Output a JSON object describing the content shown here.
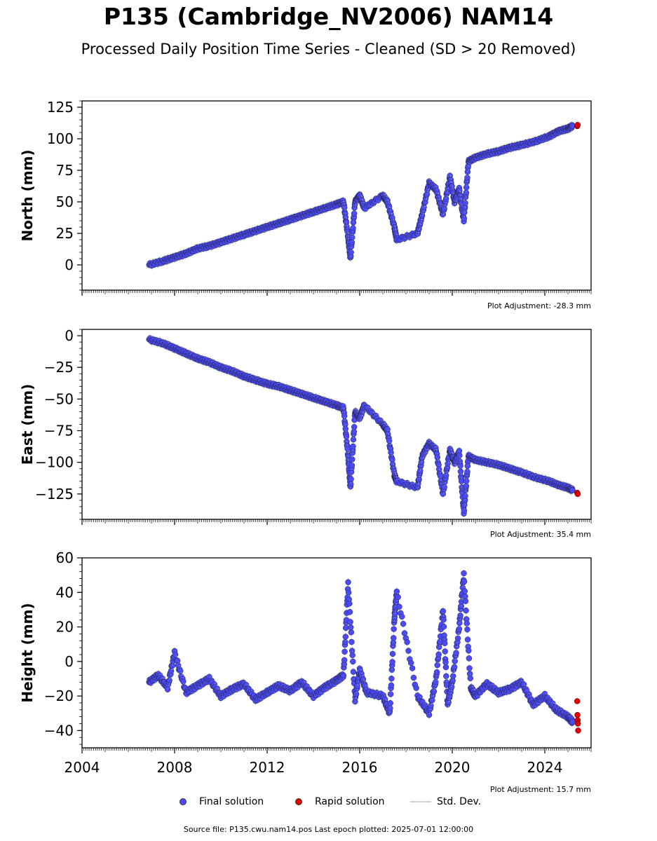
{
  "title": "P135 (Cambridge_NV2006) NAM14",
  "subtitle": "Processed Daily Position Time Series - Cleaned (SD > 20 Removed)",
  "legend": {
    "final": "Final solution",
    "rapid": "Rapid solution",
    "std": "Std. Dev."
  },
  "source": "Source file: P135.cwu.nam14.pos  Last epoch plotted: 2025-07-01 12:00:00",
  "colors": {
    "final": "#4b4bf5",
    "rapid": "#e00000",
    "std": "#b0b0b0",
    "edge": "#222244"
  },
  "chart_data": [
    {
      "type": "scatter",
      "panel": "north",
      "ylabel": "North (mm)",
      "xlim": [
        2004,
        2026
      ],
      "ylim": [
        -20,
        130
      ],
      "yticks": [
        0,
        25,
        50,
        75,
        100,
        125
      ],
      "adjustment": "Plot Adjustment: -28.3 mm",
      "series": [
        {
          "name": "Final solution",
          "x": [
            2006.9,
            2007.5,
            2008.0,
            2008.5,
            2009.0,
            2009.5,
            2010.0,
            2010.5,
            2011.0,
            2011.5,
            2012.0,
            2012.5,
            2013.0,
            2013.5,
            2014.0,
            2014.5,
            2015.0,
            2015.3,
            2015.5,
            2015.6,
            2015.8,
            2016.0,
            2016.2,
            2017.0,
            2017.2,
            2017.5,
            2017.6,
            2018.5,
            2018.7,
            2019.0,
            2019.3,
            2019.6,
            2019.9,
            2020.1,
            2020.3,
            2020.5,
            2020.7,
            2021.0,
            2021.5,
            2022.0,
            2022.5,
            2023.0,
            2023.6,
            2024.2,
            2024.6,
            2025.0,
            2025.2
          ],
          "y": [
            0,
            3,
            6,
            9,
            13,
            15,
            18,
            21,
            24,
            27,
            30,
            33,
            36,
            39,
            42,
            45,
            48,
            50,
            22,
            5,
            50,
            55,
            45,
            55,
            50,
            30,
            20,
            25,
            40,
            65,
            60,
            40,
            70,
            50,
            60,
            35,
            82,
            85,
            88,
            90,
            93,
            95,
            98,
            102,
            106,
            108,
            110
          ]
        }
      ],
      "rapid": {
        "x": [
          2025.4,
          2025.42
        ],
        "y": [
          110,
          111
        ]
      }
    },
    {
      "type": "scatter",
      "panel": "east",
      "ylabel": "East (mm)",
      "xlim": [
        2004,
        2026
      ],
      "ylim": [
        -145,
        5
      ],
      "yticks": [
        0,
        -25,
        -50,
        -75,
        -100,
        -125
      ],
      "adjustment": "Plot Adjustment: 35.4 mm",
      "series": [
        {
          "name": "Final solution",
          "x": [
            2006.9,
            2007.5,
            2008.0,
            2008.5,
            2009.0,
            2009.5,
            2010.0,
            2010.5,
            2011.0,
            2011.5,
            2012.0,
            2012.5,
            2013.0,
            2013.5,
            2014.0,
            2014.5,
            2015.0,
            2015.3,
            2015.5,
            2015.6,
            2015.8,
            2016.0,
            2016.2,
            2017.0,
            2017.2,
            2017.5,
            2017.6,
            2018.5,
            2018.7,
            2019.0,
            2019.3,
            2019.6,
            2019.9,
            2020.1,
            2020.3,
            2020.5,
            2020.7,
            2021.0,
            2021.5,
            2022.0,
            2022.5,
            2023.0,
            2023.6,
            2024.2,
            2024.6,
            2025.0,
            2025.2
          ],
          "y": [
            -3,
            -6,
            -10,
            -14,
            -18,
            -21,
            -25,
            -28,
            -32,
            -35,
            -38,
            -40,
            -43,
            -46,
            -49,
            -52,
            -55,
            -57,
            -95,
            -120,
            -60,
            -65,
            -55,
            -70,
            -75,
            -110,
            -115,
            -120,
            -95,
            -85,
            -90,
            -125,
            -90,
            -100,
            -92,
            -140,
            -95,
            -98,
            -100,
            -102,
            -105,
            -108,
            -112,
            -115,
            -118,
            -120,
            -122
          ]
        }
      ],
      "rapid": {
        "x": [
          2025.4,
          2025.42
        ],
        "y": [
          -124,
          -125
        ]
      }
    },
    {
      "type": "scatter",
      "panel": "height",
      "ylabel": "Height (mm)",
      "xlim": [
        2004,
        2026
      ],
      "ylim": [
        -50,
        60
      ],
      "yticks": [
        60,
        40,
        20,
        0,
        -20,
        -40
      ],
      "xticks": [
        2004,
        2008,
        2012,
        2016,
        2020,
        2024
      ],
      "adjustment": "Plot Adjustment: 15.7 mm",
      "series": [
        {
          "name": "Final solution",
          "x": [
            2006.9,
            2007.3,
            2007.7,
            2008.0,
            2008.5,
            2009.0,
            2009.5,
            2010.0,
            2010.5,
            2011.0,
            2011.5,
            2012.0,
            2012.5,
            2013.0,
            2013.5,
            2014.0,
            2014.5,
            2015.0,
            2015.3,
            2015.5,
            2015.8,
            2016.0,
            2016.3,
            2017.0,
            2017.3,
            2017.5,
            2017.6,
            2018.5,
            2019.0,
            2019.3,
            2019.6,
            2019.8,
            2020.0,
            2020.3,
            2020.5,
            2020.8,
            2021.0,
            2021.5,
            2022.0,
            2022.5,
            2023.0,
            2023.5,
            2024.0,
            2024.5,
            2025.0,
            2025.2
          ],
          "y": [
            -12,
            -8,
            -15,
            5,
            -18,
            -14,
            -10,
            -20,
            -16,
            -13,
            -22,
            -18,
            -14,
            -17,
            -12,
            -20,
            -15,
            -11,
            -8,
            45,
            -22,
            -5,
            -18,
            -20,
            -30,
            25,
            40,
            -20,
            -30,
            -10,
            30,
            -25,
            -12,
            20,
            50,
            -15,
            -20,
            -13,
            -18,
            -16,
            -12,
            -25,
            -20,
            -28,
            -32,
            -35
          ]
        }
      ],
      "rapid": {
        "x": [
          2025.4,
          2025.41,
          2025.42,
          2025.43,
          2025.44
        ],
        "y": [
          -23,
          -31,
          -34,
          -36,
          -40
        ]
      }
    }
  ]
}
